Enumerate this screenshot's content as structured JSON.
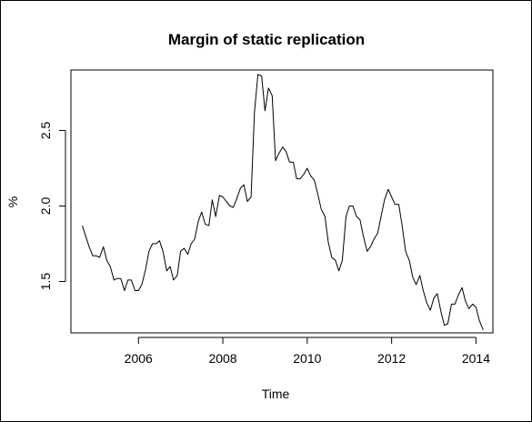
{
  "chart_data": {
    "type": "line",
    "title": "Margin of static replication",
    "xlabel": "Time",
    "ylabel": "%",
    "xlim": [
      2004.4,
      2014.4
    ],
    "ylim": [
      1.16,
      2.9
    ],
    "x_ticks": [
      2006,
      2008,
      2010,
      2012,
      2014
    ],
    "x_tick_labels": [
      "2006",
      "2008",
      "2010",
      "2012",
      "2014"
    ],
    "y_ticks": [
      1.5,
      2.0,
      2.5
    ],
    "y_tick_labels": [
      "1.5",
      "2.0",
      "2.5"
    ],
    "grid": false,
    "line_color": "#000000",
    "series": [
      {
        "x": [
          2004.67,
          2004.75,
          2004.83,
          2004.92,
          2005.0,
          2005.08,
          2005.17,
          2005.25,
          2005.33,
          2005.42,
          2005.5,
          2005.58,
          2005.67,
          2005.75,
          2005.83,
          2005.92,
          2006.0,
          2006.08,
          2006.17,
          2006.25,
          2006.33,
          2006.42,
          2006.5,
          2006.58,
          2006.67,
          2006.75,
          2006.83,
          2006.92,
          2007.0,
          2007.08,
          2007.17,
          2007.25,
          2007.33,
          2007.42,
          2007.5,
          2007.58,
          2007.67,
          2007.75,
          2007.83,
          2007.92,
          2008.0,
          2008.08,
          2008.17,
          2008.25,
          2008.33,
          2008.42,
          2008.5,
          2008.58,
          2008.67,
          2008.75,
          2008.83,
          2008.92,
          2009.0,
          2009.08,
          2009.17,
          2009.25,
          2009.33,
          2009.42,
          2009.5,
          2009.58,
          2009.67,
          2009.75,
          2009.83,
          2009.92,
          2010.0,
          2010.08,
          2010.17,
          2010.25,
          2010.33,
          2010.42,
          2010.5,
          2010.58,
          2010.67,
          2010.75,
          2010.83,
          2010.92,
          2011.0,
          2011.08,
          2011.17,
          2011.25,
          2011.33,
          2011.42,
          2011.5,
          2011.58,
          2011.67,
          2011.75,
          2011.83,
          2011.92,
          2012.0,
          2012.08,
          2012.17,
          2012.25,
          2012.33,
          2012.42,
          2012.5,
          2012.58,
          2012.67,
          2012.75,
          2012.83,
          2012.92,
          2013.0,
          2013.08,
          2013.17,
          2013.25,
          2013.33,
          2013.42,
          2013.5,
          2013.58,
          2013.67,
          2013.75,
          2013.83,
          2013.92,
          2014.0,
          2014.08,
          2014.17
        ],
        "values": [
          1.87,
          1.8,
          1.73,
          1.67,
          1.67,
          1.66,
          1.73,
          1.64,
          1.6,
          1.51,
          1.52,
          1.52,
          1.44,
          1.51,
          1.51,
          1.44,
          1.44,
          1.48,
          1.58,
          1.7,
          1.75,
          1.75,
          1.77,
          1.7,
          1.57,
          1.6,
          1.51,
          1.54,
          1.7,
          1.72,
          1.68,
          1.75,
          1.78,
          1.9,
          1.96,
          1.88,
          1.87,
          2.04,
          1.93,
          2.07,
          2.06,
          2.03,
          2.0,
          1.99,
          2.05,
          2.12,
          2.14,
          2.03,
          2.06,
          2.62,
          2.87,
          2.86,
          2.63,
          2.78,
          2.73,
          2.3,
          2.35,
          2.39,
          2.36,
          2.29,
          2.29,
          2.18,
          2.18,
          2.21,
          2.25,
          2.2,
          2.17,
          2.08,
          1.98,
          1.93,
          1.76,
          1.66,
          1.64,
          1.57,
          1.64,
          1.93,
          2.0,
          2.0,
          1.93,
          1.91,
          1.8,
          1.7,
          1.73,
          1.78,
          1.82,
          1.93,
          2.04,
          2.11,
          2.06,
          2.01,
          2.01,
          1.87,
          1.7,
          1.64,
          1.53,
          1.48,
          1.54,
          1.44,
          1.36,
          1.31,
          1.39,
          1.42,
          1.3,
          1.21,
          1.22,
          1.35,
          1.35,
          1.41,
          1.46,
          1.37,
          1.32,
          1.35,
          1.33,
          1.24,
          1.18
        ]
      }
    ]
  }
}
